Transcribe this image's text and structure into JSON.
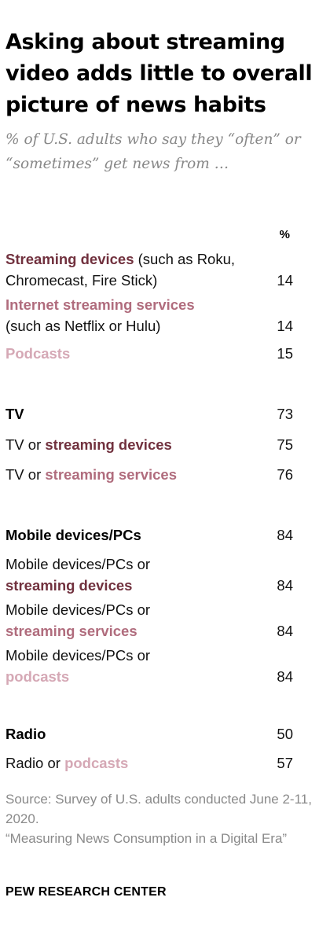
{
  "title": "Asking about streaming video adds little to overall picture of news habits",
  "subtitle": "% of U.S. adults who say they “often” or “sometimes” get news from …",
  "column_header": "%",
  "chart_data": {
    "type": "table",
    "title": "Asking about streaming video adds little to overall picture of news habits",
    "subtitle": "% of U.S. adults who say they “often” or “sometimes” get news from …",
    "unit": "%",
    "rows": [
      {
        "label": "Streaming devices (such as Roku, Chromecast, Fire Stick)",
        "value": 14
      },
      {
        "label": "Internet streaming services (such as Netflix or Hulu)",
        "value": 14
      },
      {
        "label": "Podcasts",
        "value": 15
      },
      {
        "label": "TV",
        "value": 73
      },
      {
        "label": "TV or streaming devices",
        "value": 75
      },
      {
        "label": "TV or streaming services",
        "value": 76
      },
      {
        "label": "Mobile devices/PCs",
        "value": 84
      },
      {
        "label": "Mobile devices/PCs or streaming devices",
        "value": 84
      },
      {
        "label": "Mobile devices/PCs or streaming services",
        "value": 84
      },
      {
        "label": "Mobile devices/PCs or podcasts",
        "value": 84
      },
      {
        "label": "Radio",
        "value": 50
      },
      {
        "label": "Radio or podcasts",
        "value": 57
      }
    ],
    "colors": {
      "streaming_devices": "#71313e",
      "streaming_services": "#b06c7d",
      "podcasts": "#d5a8b5",
      "text": "#111111",
      "muted": "#8a8a8a"
    }
  },
  "rows_text": {
    "r1": {
      "bold": "Streaming devices",
      "rest": " (such as Roku, Chromecast, Fire Stick)",
      "value": "14"
    },
    "r2": {
      "bold": "Internet streaming services",
      "rest": "(such as Netflix or Hulu)",
      "value": "14"
    },
    "r3": {
      "bold": "Podcasts",
      "value": "15"
    },
    "r4": {
      "bold": "TV",
      "value": "73"
    },
    "r5": {
      "pre": "TV or ",
      "bold": "streaming devices",
      "value": "75"
    },
    "r6": {
      "pre": "TV or ",
      "bold": "streaming services",
      "value": "76"
    },
    "r7": {
      "bold": "Mobile devices/PCs",
      "value": "84"
    },
    "r8": {
      "pre": "Mobile devices/PCs or",
      "bold": "streaming devices",
      "value": "84"
    },
    "r9": {
      "pre": "Mobile devices/PCs or",
      "bold": "streaming services",
      "value": "84"
    },
    "r10": {
      "pre": "Mobile devices/PCs or",
      "bold": "podcasts",
      "value": "84"
    },
    "r11": {
      "bold": "Radio",
      "value": "50"
    },
    "r12": {
      "pre": "Radio or ",
      "bold": "podcasts",
      "value": "57"
    }
  },
  "footer": {
    "source": "Source: Survey of U.S. adults conducted June 2-11, 2020.",
    "report": "“Measuring News Consumption in a Digital Era”",
    "brand": "PEW RESEARCH CENTER"
  }
}
